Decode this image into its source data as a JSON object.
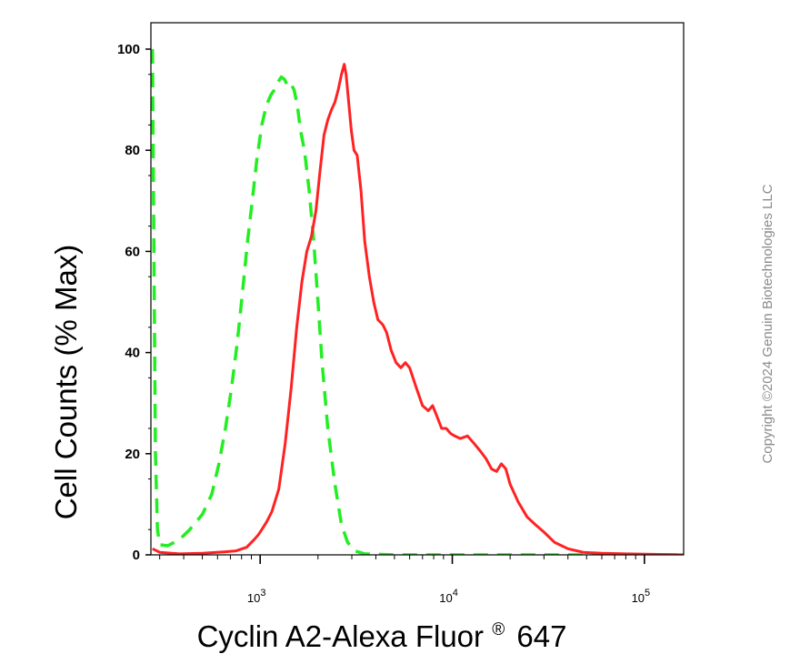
{
  "chart_data": {
    "type": "line",
    "title": "",
    "xlabel": {
      "text": "Cyclin A2-Alexa Fluor",
      "superscript": "®",
      "suffix": "647"
    },
    "ylabel": "Cell Counts (% Max)",
    "x_scale": "log",
    "xlim": [
      270,
      160000
    ],
    "ylim": [
      0,
      100
    ],
    "y_ticks": [
      {
        "value": 0,
        "label": "0"
      },
      {
        "value": 20,
        "label": "20"
      },
      {
        "value": 40,
        "label": "40"
      },
      {
        "value": 60,
        "label": "60"
      },
      {
        "value": 80,
        "label": "80"
      },
      {
        "value": 100,
        "label": "100"
      }
    ],
    "x_major_ticks": [
      {
        "value": 1000,
        "base": "10",
        "exp": "3"
      },
      {
        "value": 10000,
        "base": "10",
        "exp": "4"
      },
      {
        "value": 100000,
        "base": "10",
        "exp": "5"
      }
    ],
    "grid": false,
    "series": [
      {
        "style": "dashed",
        "color": "#22ee22",
        "points": [
          [
            275,
            100
          ],
          [
            280,
            60
          ],
          [
            285,
            20
          ],
          [
            292,
            5
          ],
          [
            300,
            2
          ],
          [
            330,
            1.8
          ],
          [
            380,
            3
          ],
          [
            430,
            5
          ],
          [
            500,
            8
          ],
          [
            560,
            12
          ],
          [
            610,
            18
          ],
          [
            660,
            25
          ],
          [
            710,
            33
          ],
          [
            760,
            42
          ],
          [
            810,
            52
          ],
          [
            860,
            62
          ],
          [
            910,
            70
          ],
          [
            960,
            78
          ],
          [
            1020,
            85
          ],
          [
            1080,
            89
          ],
          [
            1140,
            91
          ],
          [
            1190,
            92
          ],
          [
            1240,
            93.5
          ],
          [
            1290,
            94.5
          ],
          [
            1340,
            94
          ],
          [
            1400,
            92.5
          ],
          [
            1450,
            93
          ],
          [
            1500,
            92
          ],
          [
            1560,
            89
          ],
          [
            1620,
            84
          ],
          [
            1700,
            80
          ],
          [
            1800,
            72
          ],
          [
            1900,
            62
          ],
          [
            2000,
            50
          ],
          [
            2100,
            38
          ],
          [
            2250,
            25
          ],
          [
            2450,
            14
          ],
          [
            2650,
            6
          ],
          [
            2850,
            2.5
          ],
          [
            3100,
            0.8
          ],
          [
            3500,
            0.2
          ],
          [
            5000,
            0
          ],
          [
            20000,
            0
          ],
          [
            80000,
            0
          ],
          [
            160000,
            0
          ]
        ]
      },
      {
        "style": "solid",
        "color": "#ff2222",
        "points": [
          [
            275,
            1.2
          ],
          [
            300,
            0.5
          ],
          [
            380,
            0.2
          ],
          [
            500,
            0.3
          ],
          [
            650,
            0.6
          ],
          [
            750,
            0.8
          ],
          [
            850,
            1.5
          ],
          [
            930,
            3
          ],
          [
            980,
            4
          ],
          [
            1020,
            5
          ],
          [
            1080,
            6.5
          ],
          [
            1150,
            8.5
          ],
          [
            1250,
            13
          ],
          [
            1350,
            22
          ],
          [
            1450,
            33
          ],
          [
            1550,
            45
          ],
          [
            1650,
            54
          ],
          [
            1750,
            60
          ],
          [
            1850,
            63
          ],
          [
            1950,
            68
          ],
          [
            2050,
            76
          ],
          [
            2150,
            83
          ],
          [
            2250,
            86
          ],
          [
            2350,
            88
          ],
          [
            2450,
            89.5
          ],
          [
            2550,
            92
          ],
          [
            2650,
            95
          ],
          [
            2740,
            97
          ],
          [
            2800,
            95
          ],
          [
            2880,
            90
          ],
          [
            2980,
            84
          ],
          [
            3080,
            80
          ],
          [
            3200,
            79
          ],
          [
            3350,
            72
          ],
          [
            3500,
            62
          ],
          [
            3700,
            55
          ],
          [
            3900,
            50
          ],
          [
            4100,
            46.5
          ],
          [
            4350,
            45.5
          ],
          [
            4550,
            44
          ],
          [
            4800,
            40.5
          ],
          [
            5100,
            38
          ],
          [
            5400,
            37
          ],
          [
            5700,
            38
          ],
          [
            6000,
            37
          ],
          [
            6500,
            33
          ],
          [
            7000,
            29.5
          ],
          [
            7500,
            28.5
          ],
          [
            7900,
            29.5
          ],
          [
            8300,
            27.5
          ],
          [
            8800,
            25
          ],
          [
            9300,
            25
          ],
          [
            9800,
            24
          ],
          [
            10300,
            23.5
          ],
          [
            11000,
            23
          ],
          [
            12000,
            23.5
          ],
          [
            13000,
            22
          ],
          [
            14000,
            20.5
          ],
          [
            15000,
            19
          ],
          [
            16000,
            17
          ],
          [
            17000,
            16.5
          ],
          [
            18000,
            18
          ],
          [
            19000,
            17
          ],
          [
            20000,
            14
          ],
          [
            22000,
            10.5
          ],
          [
            24500,
            7.5
          ],
          [
            27000,
            6
          ],
          [
            30000,
            4.5
          ],
          [
            34000,
            2.5
          ],
          [
            40000,
            1.2
          ],
          [
            48000,
            0.5
          ],
          [
            60000,
            0.3
          ],
          [
            80000,
            0.2
          ],
          [
            110000,
            0.1
          ],
          [
            160000,
            0
          ]
        ]
      }
    ]
  },
  "copyright": "Copyright ©2024 Genuin Biotechnologies LLC"
}
